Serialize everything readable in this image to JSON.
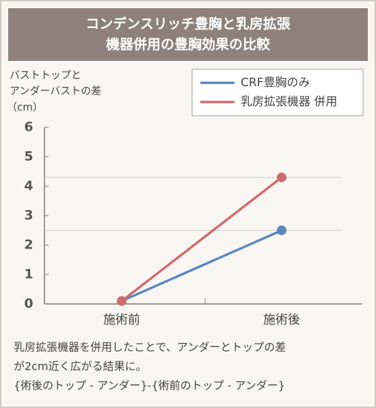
{
  "chart_data": {
    "type": "line",
    "title": [
      "コンデンスリッチ豊胸と乳房拡張",
      "機器併用の豊胸効果の比較"
    ],
    "ylabel": [
      "バストトップと",
      "アンダーバストの差",
      "（cm）"
    ],
    "categories": [
      "施術前",
      "施術後"
    ],
    "series": [
      {
        "name": "CRF豊胸のみ",
        "color": "#5b87c0",
        "values": [
          0.1,
          2.5
        ]
      },
      {
        "name": "乳房拡張機器 併用",
        "color": "#d16a6a",
        "values": [
          0.1,
          4.3
        ]
      }
    ],
    "ylim": [
      0,
      6
    ],
    "yticks": [
      0,
      1,
      2,
      3,
      4,
      5,
      6
    ],
    "caption": [
      "乳房拡張機器を併用したことで、アンダーとトップの差",
      "が2cm近く広がる結果に。",
      "{術後のトップ - アンダー}-{術前のトップ - アンダー}"
    ]
  }
}
